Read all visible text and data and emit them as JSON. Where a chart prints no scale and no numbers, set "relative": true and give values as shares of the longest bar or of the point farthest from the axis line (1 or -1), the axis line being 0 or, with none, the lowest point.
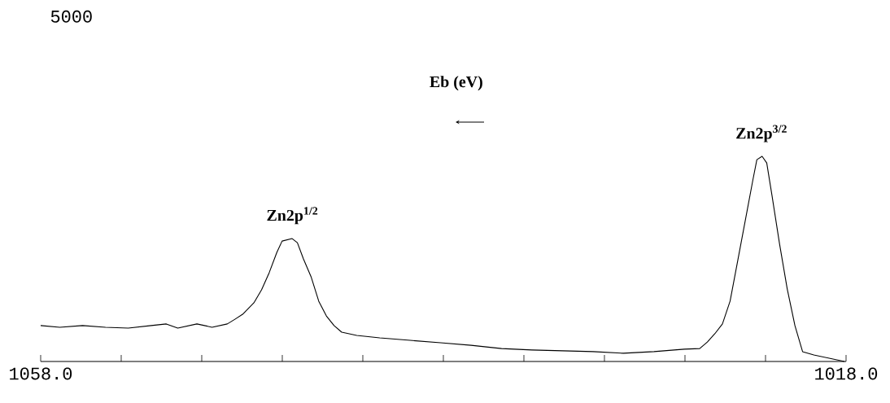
{
  "chart_data": {
    "type": "line",
    "xlabel": "Eb (eV)",
    "relative": true,
    "xlim": [
      1058,
      1018
    ],
    "xticks": [
      {
        "value": 1058,
        "label": "1058.0"
      },
      {
        "value": 1054,
        "label": null
      },
      {
        "value": 1050,
        "label": null
      },
      {
        "value": 1046,
        "label": null
      },
      {
        "value": 1042,
        "label": null
      },
      {
        "value": 1038,
        "label": null
      },
      {
        "value": 1034,
        "label": null
      },
      {
        "value": 1030,
        "label": null
      },
      {
        "value": 1026,
        "label": null
      },
      {
        "value": 1022,
        "label": null
      },
      {
        "value": 1018,
        "label": "1018.0"
      }
    ],
    "annotations": [
      "5000",
      {
        "text": "Zn2p$^{1/2}$",
        "x": 1045.5,
        "y": 0.6
      },
      {
        "text": "Zn2p$^{3/2}$",
        "x": 1022.2,
        "y": 1.0
      }
    ],
    "series": [
      {
        "color": "#000000",
        "x": [
          1058.0,
          1057.05,
          1055.92,
          1054.78,
          1053.65,
          1052.51,
          1051.76,
          1051.19,
          1050.24,
          1049.49,
          1048.73,
          1048.35,
          1047.97,
          1047.41,
          1047.03,
          1046.65,
          1046.27,
          1046.01,
          1045.51,
          1045.25,
          1044.95,
          1044.57,
          1044.19,
          1043.81,
          1043.43,
          1043.05,
          1042.3,
          1041.16,
          1039.65,
          1038.14,
          1036.62,
          1035.11,
          1033.6,
          1032.08,
          1030.57,
          1029.06,
          1027.54,
          1026.03,
          1025.27,
          1024.89,
          1024.52,
          1024.14,
          1023.76,
          1023.38,
          1023.0,
          1022.62,
          1022.43,
          1022.17,
          1021.94,
          1021.68,
          1021.3,
          1020.92,
          1020.54,
          1020.16,
          1019.6,
          1018.84,
          1018.08
        ],
        "values": [
          0.175,
          0.167,
          0.175,
          0.167,
          0.163,
          0.175,
          0.183,
          0.163,
          0.183,
          0.167,
          0.183,
          0.206,
          0.23,
          0.286,
          0.349,
          0.433,
          0.532,
          0.587,
          0.599,
          0.579,
          0.5,
          0.413,
          0.294,
          0.222,
          0.175,
          0.143,
          0.127,
          0.115,
          0.103,
          0.091,
          0.079,
          0.063,
          0.056,
          0.052,
          0.048,
          0.04,
          0.048,
          0.06,
          0.063,
          0.095,
          0.135,
          0.183,
          0.294,
          0.492,
          0.69,
          0.889,
          0.984,
          1.0,
          0.968,
          0.81,
          0.571,
          0.353,
          0.175,
          0.048,
          0.032,
          0.016,
          0.0
        ]
      }
    ]
  }
}
